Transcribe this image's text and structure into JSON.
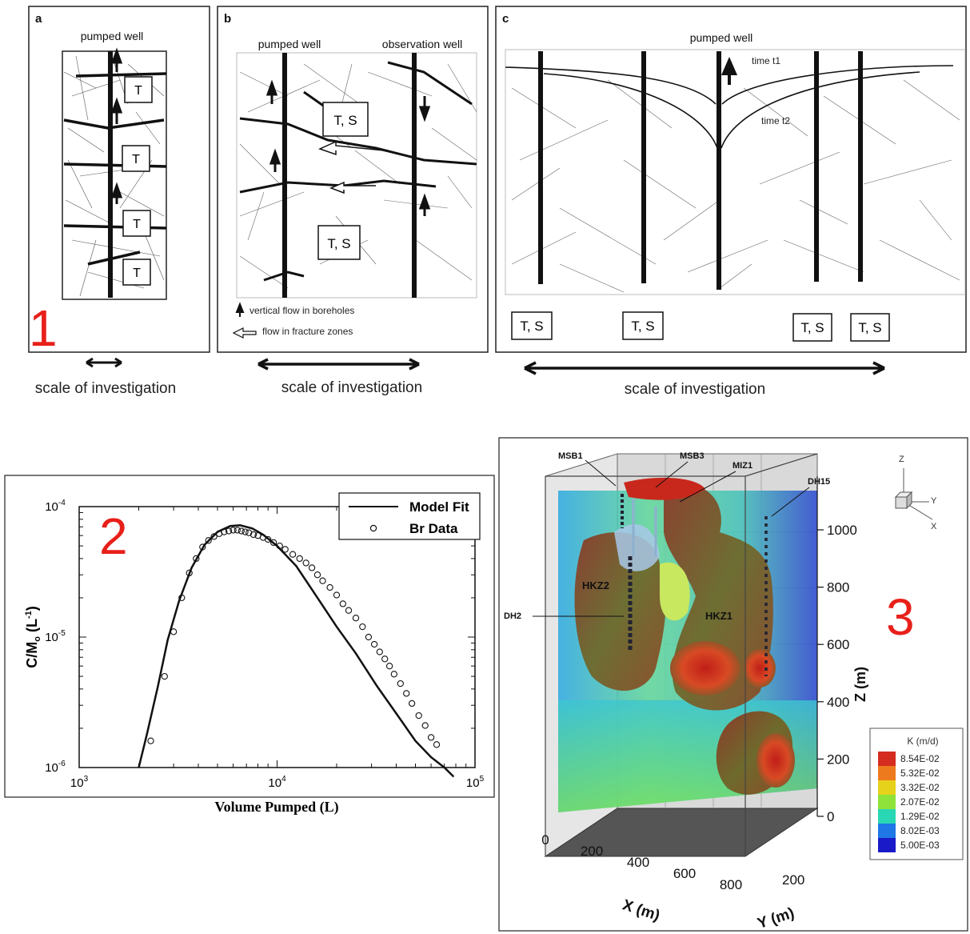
{
  "figure1": {
    "number": "1",
    "scale_label": "scale of investigation",
    "panel_a": {
      "letter": "a",
      "well": "pumped well",
      "boxes": [
        "T",
        "T",
        "T",
        "T"
      ]
    },
    "panel_b": {
      "letter": "b",
      "well_left": "pumped well",
      "well_right": "observation well",
      "boxes": [
        "T, S",
        "T, S"
      ],
      "legend_vertical": "vertical flow in boreholes",
      "legend_fracture": "flow in fracture zones"
    },
    "panel_c": {
      "letter": "c",
      "well": "pumped well",
      "time1": "time t1",
      "time2": "time t2",
      "boxes": [
        "T, S",
        "T, S",
        "T, S",
        "T, S"
      ]
    }
  },
  "figure2": {
    "number": "2",
    "chart_data": {
      "type": "scatter",
      "xlabel": "Volume Pumped (L)",
      "ylabel": "C/M",
      "ylabel_sub": "o",
      "ylabel_unit": " (L",
      "ylabel_sup": "-1",
      "ylabel_close": ")",
      "x_scale": "log",
      "y_scale": "log",
      "xlim": [
        1000,
        100000
      ],
      "ylim": [
        1e-06,
        0.0001
      ],
      "x_ticks": [
        {
          "base": "10",
          "exp": "3"
        },
        {
          "base": "10",
          "exp": "4"
        },
        {
          "base": "10",
          "exp": "5"
        }
      ],
      "y_ticks": [
        {
          "base": "10",
          "exp": "-6"
        },
        {
          "base": "10",
          "exp": "-5"
        },
        {
          "base": "10",
          "exp": "-4"
        }
      ],
      "legend_position": "top-right",
      "series": [
        {
          "name": "Model Fit",
          "style": "line",
          "x": [
            2000,
            2200,
            2500,
            2800,
            3200,
            3700,
            4300,
            5000,
            5800,
            6500,
            7500,
            8500,
            10000,
            12500,
            16000,
            20000,
            25000,
            32000,
            40000,
            50000,
            60000,
            70000,
            78000
          ],
          "y": [
            1e-06,
            1.8e-06,
            4.2e-06,
            9.5e-06,
            1.9e-05,
            3.4e-05,
            5.1e-05,
            6.4e-05,
            7.1e-05,
            7.2e-05,
            6.8e-05,
            6.1e-05,
            5e-05,
            3.5e-05,
            2e-05,
            1.2e-05,
            7.5e-06,
            4.2e-06,
            2.6e-06,
            1.6e-06,
            1.2e-06,
            1e-06,
            8.5e-07
          ]
        },
        {
          "name": "Br Data",
          "style": "marker",
          "x": [
            2300,
            2700,
            3000,
            3300,
            3600,
            3900,
            4200,
            4500,
            4800,
            5100,
            5400,
            5700,
            6000,
            6300,
            6600,
            6900,
            7200,
            7600,
            8000,
            8500,
            9000,
            9600,
            10300,
            11000,
            12000,
            13000,
            14000,
            15000,
            16000,
            17000,
            18500,
            20000,
            21500,
            23000,
            25000,
            27000,
            29000,
            31000,
            33000,
            35000,
            37000,
            39000,
            42000,
            45000,
            48000,
            52000,
            56000,
            60000,
            64000
          ],
          "y": [
            1.6e-06,
            5e-06,
            1.1e-05,
            2e-05,
            3.1e-05,
            4e-05,
            4.9e-05,
            5.5e-05,
            5.9e-05,
            6.2e-05,
            6.4e-05,
            6.5e-05,
            6.6e-05,
            6.6e-05,
            6.5e-05,
            6.4e-05,
            6.3e-05,
            6.1e-05,
            6e-05,
            5.8e-05,
            5.6e-05,
            5.3e-05,
            5e-05,
            4.7e-05,
            4.3e-05,
            4e-05,
            3.7e-05,
            3.4e-05,
            3e-05,
            2.7e-05,
            2.4e-05,
            2.1e-05,
            1.8e-05,
            1.6e-05,
            1.4e-05,
            1.2e-05,
            1e-05,
            8.8e-06,
            7.7e-06,
            6.8e-06,
            6e-06,
            5.2e-06,
            4.4e-06,
            3.7e-06,
            3.1e-06,
            2.5e-06,
            2.1e-06,
            1.7e-06,
            1.5e-06
          ]
        }
      ]
    }
  },
  "figure3": {
    "number": "3",
    "labels": {
      "msb1": "MSB1",
      "msb3": "MSB3",
      "miz1": "MIZ1",
      "dh15": "DH15",
      "dh2": "DH2",
      "hkz2": "HKZ2",
      "hkz1": "HKZ1"
    },
    "axes": {
      "x_label": "X (m)",
      "y_label": "Y (m)",
      "z_label": "Z (m)",
      "x_ticks": [
        "0",
        "200",
        "400",
        "600",
        "800"
      ],
      "y_ticks": [
        "200"
      ],
      "z_ticks": [
        "0",
        "200",
        "400",
        "600",
        "800",
        "1000"
      ]
    },
    "triad": {
      "x": "X",
      "y": "Y",
      "z": "Z"
    },
    "colorbar": {
      "title": "K (m/d)",
      "entries": [
        {
          "label": "8.54E-02",
          "color": "#d42d1f"
        },
        {
          "label": "5.32E-02",
          "color": "#ee7a1e"
        },
        {
          "label": "3.32E-02",
          "color": "#e6d21b"
        },
        {
          "label": "2.07E-02",
          "color": "#8fe23a"
        },
        {
          "label": "1.29E-02",
          "color": "#29d7b4"
        },
        {
          "label": "8.02E-03",
          "color": "#1f78e6"
        },
        {
          "label": "5.00E-03",
          "color": "#1a1ac8"
        }
      ]
    }
  }
}
